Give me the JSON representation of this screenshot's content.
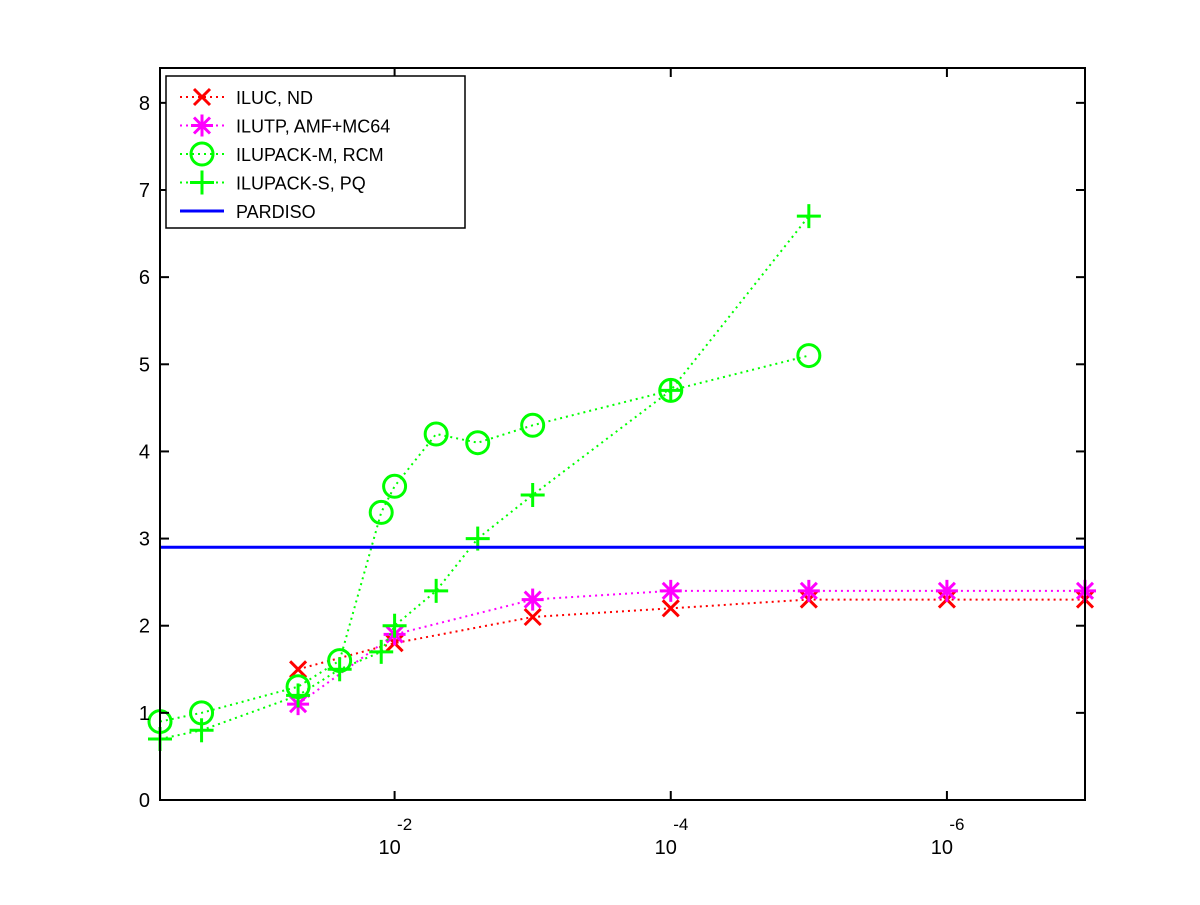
{
  "chart_data": {
    "type": "line",
    "title": "",
    "xlabel": "",
    "ylabel": "",
    "x_scale": "log",
    "x_direction": "decreasing",
    "xlim": [
      0.5,
      1e-07
    ],
    "ylim": [
      0,
      8.4
    ],
    "grid": false,
    "legend_position": "top-left",
    "y_ticks": [
      {
        "value": 0,
        "label": "0"
      },
      {
        "value": 1,
        "label": "1"
      },
      {
        "value": 2,
        "label": "2"
      },
      {
        "value": 3,
        "label": "3"
      },
      {
        "value": 4,
        "label": "4"
      },
      {
        "value": 5,
        "label": "5"
      },
      {
        "value": 6,
        "label": "6"
      },
      {
        "value": 7,
        "label": "7"
      },
      {
        "value": 8,
        "label": "8"
      }
    ],
    "x_ticks": [
      {
        "value": 0.01,
        "base": "10",
        "exponent": "-2"
      },
      {
        "value": 0.0001,
        "base": "10",
        "exponent": "-4"
      },
      {
        "value": 1e-06,
        "base": "10",
        "exponent": "-6"
      }
    ],
    "series": [
      {
        "name": "ILUC,  ND",
        "color": "#ff0000",
        "line_style": "dotted",
        "marker": "x",
        "points": [
          {
            "x": 0.05,
            "y": 1.5
          },
          {
            "x": 0.01,
            "y": 1.8
          },
          {
            "x": 0.001,
            "y": 2.1
          },
          {
            "x": 0.0001,
            "y": 2.2
          },
          {
            "x": 1e-05,
            "y": 2.3
          },
          {
            "x": 1e-06,
            "y": 2.3
          },
          {
            "x": 1e-07,
            "y": 2.3
          }
        ]
      },
      {
        "name": "ILUTP, AMF+MC64",
        "color": "#ff00ff",
        "line_style": "dotted",
        "marker": "asterisk",
        "points": [
          {
            "x": 0.05,
            "y": 1.1
          },
          {
            "x": 0.01,
            "y": 1.9
          },
          {
            "x": 0.001,
            "y": 2.3
          },
          {
            "x": 0.0001,
            "y": 2.4
          },
          {
            "x": 1e-05,
            "y": 2.4
          },
          {
            "x": 1e-06,
            "y": 2.4
          },
          {
            "x": 1e-07,
            "y": 2.4
          }
        ]
      },
      {
        "name": "ILUPACK-M, RCM",
        "color": "#00ff00",
        "line_style": "dotted",
        "marker": "circle",
        "points": [
          {
            "x": 0.5,
            "y": 0.9
          },
          {
            "x": 0.25,
            "y": 1.0
          },
          {
            "x": 0.05,
            "y": 1.3
          },
          {
            "x": 0.025,
            "y": 1.6
          },
          {
            "x": 0.0125,
            "y": 3.3
          },
          {
            "x": 0.01,
            "y": 3.6
          },
          {
            "x": 0.005,
            "y": 4.2
          },
          {
            "x": 0.0025,
            "y": 4.1
          },
          {
            "x": 0.001,
            "y": 4.3
          },
          {
            "x": 0.0001,
            "y": 4.7
          },
          {
            "x": 1e-05,
            "y": 5.1
          }
        ]
      },
      {
        "name": "ILUPACK-S, PQ",
        "color": "#00ff00",
        "line_style": "dotted",
        "marker": "plus",
        "points": [
          {
            "x": 0.5,
            "y": 0.7
          },
          {
            "x": 0.25,
            "y": 0.8
          },
          {
            "x": 0.05,
            "y": 1.2
          },
          {
            "x": 0.025,
            "y": 1.5
          },
          {
            "x": 0.0125,
            "y": 1.7
          },
          {
            "x": 0.01,
            "y": 2.0
          },
          {
            "x": 0.005,
            "y": 2.4
          },
          {
            "x": 0.0025,
            "y": 3.0
          },
          {
            "x": 0.001,
            "y": 3.5
          },
          {
            "x": 0.0001,
            "y": 4.7
          },
          {
            "x": 1e-05,
            "y": 6.7
          }
        ]
      },
      {
        "name": "PARDISO",
        "color": "#0000ff",
        "line_style": "solid",
        "marker": "none",
        "points": [
          {
            "x": 0.5,
            "y": 2.9
          },
          {
            "x": 1e-07,
            "y": 2.9
          }
        ]
      }
    ]
  }
}
